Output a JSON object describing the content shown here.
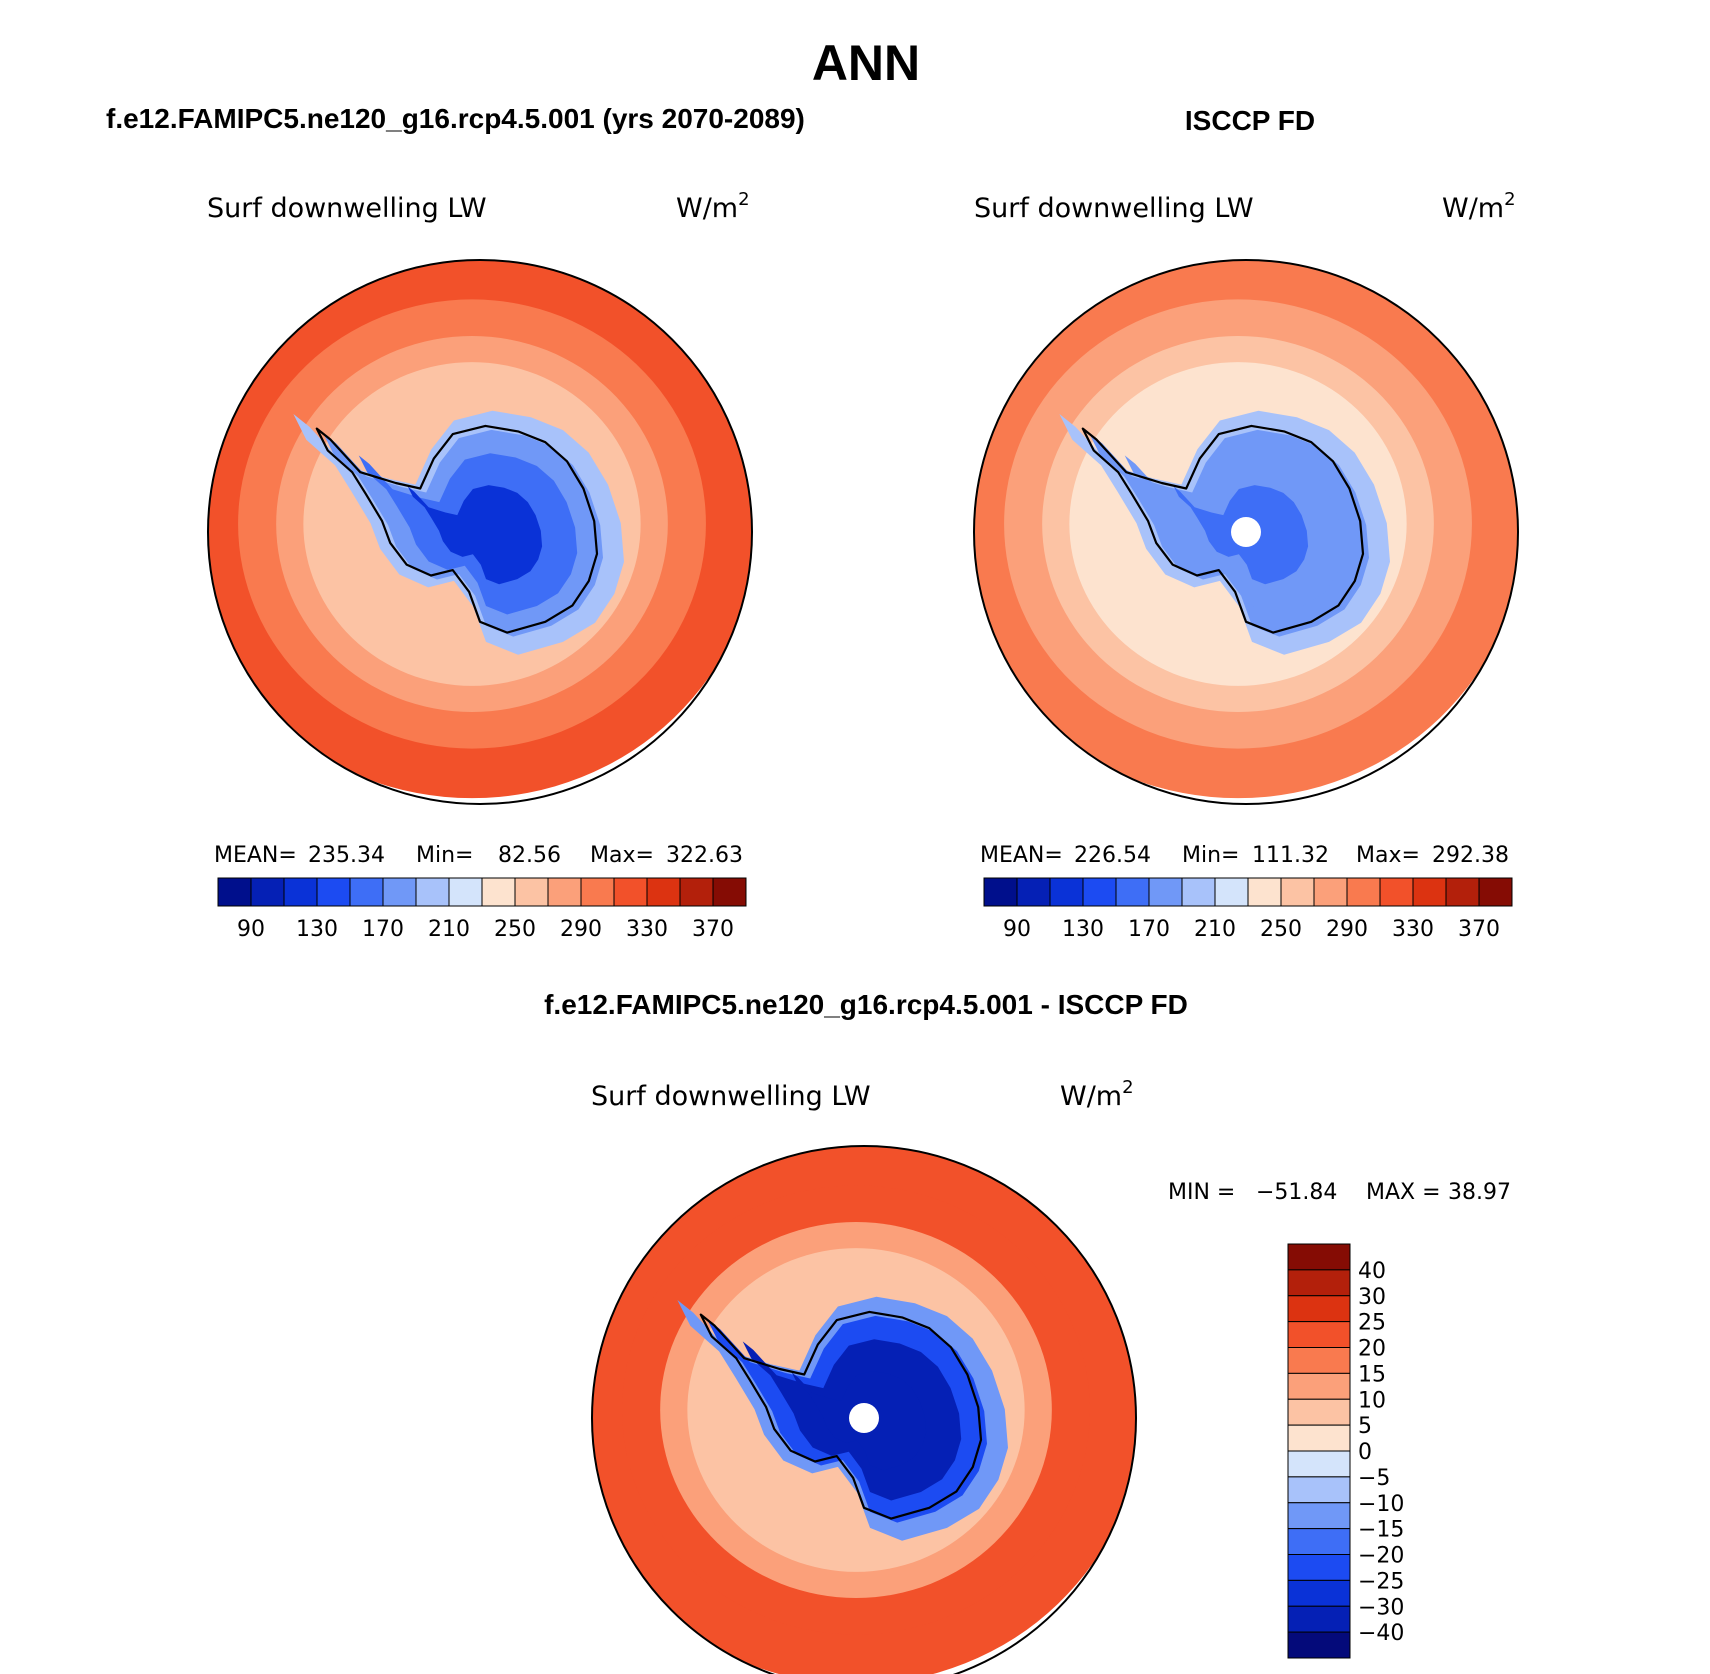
{
  "figure": {
    "season": "ANN"
  },
  "chart_data": [
    {
      "type": "contour-map",
      "projection": "south-polar-stereographic",
      "title": "f.e12.FAMIPC5.ne120_g16.rcp4.5.001 (yrs 2070-2089)",
      "variable": "Surf downwelling LW",
      "units": "W/m",
      "units_exp": "2",
      "stats": {
        "mean_label": "MEAN=",
        "mean": "235.34",
        "min_label": "Min=",
        "min": "82.56",
        "max_label": "Max=",
        "max": "322.63"
      },
      "levels": [
        80,
        90,
        110,
        130,
        150,
        170,
        190,
        210,
        230,
        250,
        270,
        290,
        310,
        330,
        350,
        370
      ],
      "tick_labels": [
        "90",
        "130",
        "170",
        "210",
        "250",
        "290",
        "330",
        "370"
      ],
      "colors": [
        "#000f8c",
        "#0520b5",
        "#0a32d7",
        "#1c4bf2",
        "#3e6ef6",
        "#7098f7",
        "#a8c2fa",
        "#d4e4fb",
        "#fde3cf",
        "#fcc3a4",
        "#fba07a",
        "#f97a4f",
        "#f2512a",
        "#dc3311",
        "#b3200b",
        "#850c04"
      ],
      "field": {
        "ocean_far": 300,
        "ocean_mid": 280,
        "coast": 240,
        "interior": 130,
        "center": 95,
        "pole_hole": false
      }
    },
    {
      "type": "contour-map",
      "projection": "south-polar-stereographic",
      "title": "ISCCP FD",
      "variable": "Surf downwelling LW",
      "units": "W/m",
      "units_exp": "2",
      "stats": {
        "mean_label": "MEAN=",
        "mean": "226.54",
        "min_label": "Min=",
        "min": "111.32",
        "max_label": "Max=",
        "max": "292.38"
      },
      "levels": [
        80,
        90,
        110,
        130,
        150,
        170,
        190,
        210,
        230,
        250,
        270,
        290,
        310,
        330,
        350,
        370
      ],
      "tick_labels": [
        "90",
        "130",
        "170",
        "210",
        "250",
        "290",
        "330",
        "370"
      ],
      "colors": [
        "#000f8c",
        "#0520b5",
        "#0a32d7",
        "#1c4bf2",
        "#3e6ef6",
        "#7098f7",
        "#a8c2fa",
        "#d4e4fb",
        "#fde3cf",
        "#fcc3a4",
        "#fba07a",
        "#f97a4f",
        "#f2512a",
        "#dc3311",
        "#b3200b",
        "#850c04"
      ],
      "field": {
        "ocean_far": 285,
        "ocean_mid": 262,
        "coast": 225,
        "interior": 150,
        "center": 130,
        "pole_hole": true
      }
    },
    {
      "type": "contour-map",
      "projection": "south-polar-stereographic",
      "title": "f.e12.FAMIPC5.ne120_g16.rcp4.5.001 - ISCCP FD",
      "variable": "Surf downwelling LW",
      "units": "W/m",
      "units_exp": "2",
      "stats": {
        "min_label": "MIN =",
        "min": "−51.84",
        "max_label": "MAX =",
        "max": "38.97"
      },
      "levels": [
        -40,
        -30,
        -25,
        -20,
        -15,
        -10,
        -5,
        0,
        5,
        10,
        15,
        20,
        25,
        30,
        40
      ],
      "tick_labels": [
        "40",
        "30",
        "25",
        "20",
        "15",
        "10",
        "5",
        "0",
        "−5",
        "−10",
        "−15",
        "−20",
        "−25",
        "−30",
        "−40"
      ],
      "colors": [
        "#040a7a",
        "#0520b5",
        "#0a32d7",
        "#1c4bf2",
        "#3e6ef6",
        "#7098f7",
        "#a8c2fa",
        "#d4e4fb",
        "#fde3cf",
        "#fcc3a4",
        "#fba07a",
        "#f97a4f",
        "#f2512a",
        "#dc3311",
        "#b3200b",
        "#850c04"
      ],
      "field": {
        "ocean_far": 24,
        "ocean_mid": 20,
        "coast": 6,
        "interior": -32,
        "center": -38,
        "pole_hole": true
      }
    }
  ]
}
